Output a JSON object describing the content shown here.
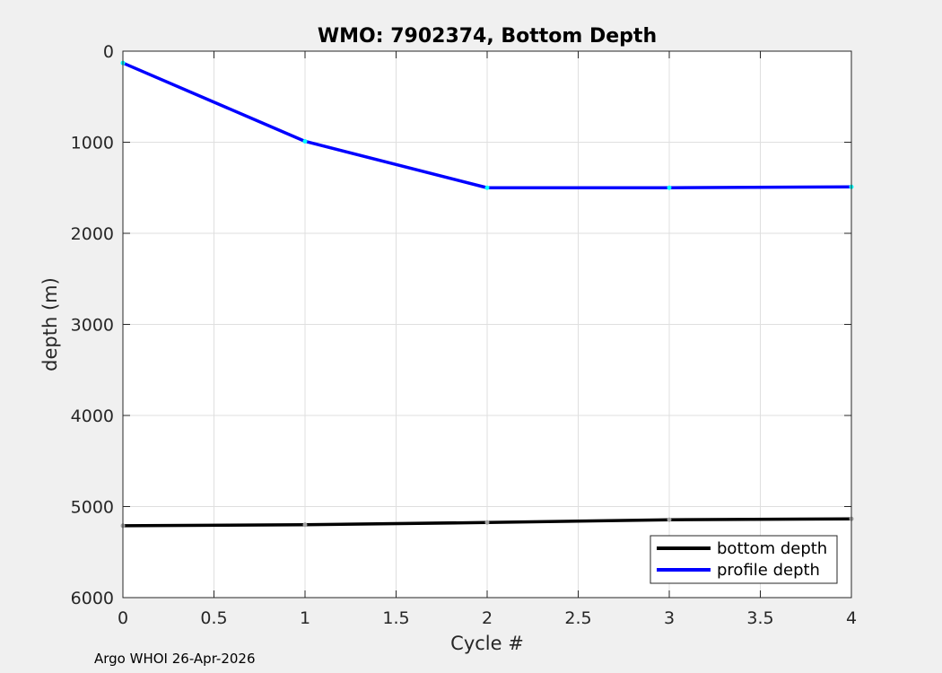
{
  "footer": {
    "credit": "Argo WHOI 26-Apr-2026"
  },
  "chart_data": {
    "type": "line",
    "title": "WMO: 7902374, Bottom Depth",
    "xlabel": "Cycle #",
    "ylabel": "depth (m)",
    "xlim": [
      0,
      4
    ],
    "ylim": [
      0,
      6000
    ],
    "y_reversed": true,
    "grid": true,
    "xticks": [
      0,
      0.5,
      1,
      1.5,
      2,
      2.5,
      3,
      3.5,
      4
    ],
    "xtick_labels": [
      "0",
      "0.5",
      "1",
      "1.5",
      "2",
      "2.5",
      "3",
      "3.5",
      "4"
    ],
    "yticks": [
      0,
      1000,
      2000,
      3000,
      4000,
      5000,
      6000
    ],
    "ytick_labels": [
      "0",
      "1000",
      "2000",
      "3000",
      "4000",
      "5000",
      "6000"
    ],
    "legend_position": "bottom-right",
    "series": [
      {
        "name": "bottom depth",
        "color": "#000000",
        "marker_color": "#a0a0a0",
        "x": [
          0,
          1,
          2,
          3,
          4
        ],
        "values": [
          5210,
          5200,
          5175,
          5145,
          5135
        ]
      },
      {
        "name": "profile depth",
        "color": "#0000ff",
        "marker_color": "#00ffff",
        "x": [
          0,
          1,
          2,
          3,
          4
        ],
        "values": [
          130,
          990,
          1500,
          1500,
          1490
        ]
      }
    ]
  }
}
